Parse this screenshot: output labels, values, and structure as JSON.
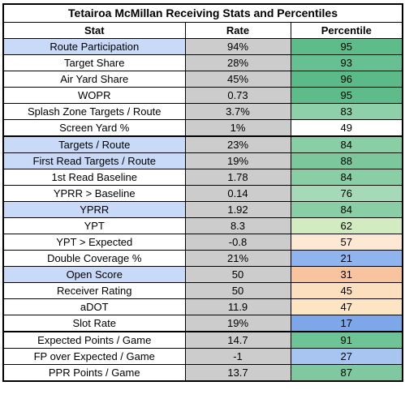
{
  "title": "Tetairoa McMillan Receiving Stats and Percentiles",
  "headers": {
    "stat": "Stat",
    "rate": "Rate",
    "percentile": "Percentile"
  },
  "colors": {
    "highlight_stat": "#c9daf8",
    "rate_bg": "#cccccc",
    "green_dark": "#57bb8a",
    "white": "#ffffff",
    "orange": "#f8c7a0",
    "blue": "#8eb3ec"
  },
  "rows": [
    {
      "stat": "Route Participation",
      "rate": "94%",
      "percentile": "95",
      "stat_bg": "#c9daf8",
      "pct_bg": "#5dbc8a"
    },
    {
      "stat": "Target Share",
      "rate": "28%",
      "percentile": "93",
      "stat_bg": "#ffffff",
      "pct_bg": "#66c092"
    },
    {
      "stat": "Air Yard Share",
      "rate": "45%",
      "percentile": "96",
      "stat_bg": "#ffffff",
      "pct_bg": "#5bbb88"
    },
    {
      "stat": "WOPR",
      "rate": "0.73",
      "percentile": "95",
      "stat_bg": "#ffffff",
      "pct_bg": "#5dbc8a"
    },
    {
      "stat": "Splash Zone Targets / Route",
      "rate": "3.7%",
      "percentile": "83",
      "stat_bg": "#ffffff",
      "pct_bg": "#8dd0a9"
    },
    {
      "stat": "Screen Yard %",
      "rate": "1%",
      "percentile": "49",
      "stat_bg": "#ffffff",
      "pct_bg": "#ffffff"
    },
    {
      "stat": "Targets / Route",
      "rate": "23%",
      "percentile": "84",
      "stat_bg": "#c9daf8",
      "pct_bg": "#8ace a6"
    },
    {
      "stat": "First Read Targets / Route",
      "rate": "19%",
      "percentile": "88",
      "stat_bg": "#c9daf8",
      "pct_bg": "#7cc79c"
    },
    {
      "stat": "1st Read Baseline",
      "rate": "1.78",
      "percentile": "84",
      "stat_bg": "#ffffff",
      "pct_bg": "#8aceA6"
    },
    {
      "stat": "YPRR > Baseline",
      "rate": "0.14",
      "percentile": "76",
      "stat_bg": "#ffffff",
      "pct_bg": "#a5d9b8"
    },
    {
      "stat": "YPRR",
      "rate": "1.92",
      "percentile": "84",
      "stat_bg": "#c9daf8",
      "pct_bg": "#8acea6"
    },
    {
      "stat": "YPT",
      "rate": "8.3",
      "percentile": "62",
      "stat_bg": "#ffffff",
      "pct_bg": "#d3ebc0"
    },
    {
      "stat": "YPT > Expected",
      "rate": "-0.8",
      "percentile": "57",
      "stat_bg": "#ffffff",
      "pct_bg": "#fde8d4"
    },
    {
      "stat": "Double Coverage %",
      "rate": "21%",
      "percentile": "21",
      "stat_bg": "#ffffff",
      "pct_bg": "#8fb4ee"
    },
    {
      "stat": "Open Score",
      "rate": "50",
      "percentile": "31",
      "stat_bg": "#c9daf8",
      "pct_bg": "#f8c4a0"
    },
    {
      "stat": "Receiver Rating",
      "rate": "50",
      "percentile": "45",
      "stat_bg": "#ffffff",
      "pct_bg": "#fbdfbf"
    },
    {
      "stat": "aDOT",
      "rate": "11.9",
      "percentile": "47",
      "stat_bg": "#ffffff",
      "pct_bg": "#fde5c4"
    },
    {
      "stat": "Slot Rate",
      "rate": "19%",
      "percentile": "17",
      "stat_bg": "#ffffff",
      "pct_bg": "#7da7e8"
    },
    {
      "stat": "Expected Points / Game",
      "rate": "14.7",
      "percentile": "91",
      "stat_bg": "#ffffff",
      "pct_bg": "#6ec397"
    },
    {
      "stat": "FP over Expected / Game",
      "rate": "-1",
      "percentile": "27",
      "stat_bg": "#ffffff",
      "pct_bg": "#a8c4f1"
    },
    {
      "stat": "PPR Points / Game",
      "rate": "13.7",
      "percentile": "87",
      "stat_bg": "#ffffff",
      "pct_bg": "#80c89f"
    }
  ]
}
